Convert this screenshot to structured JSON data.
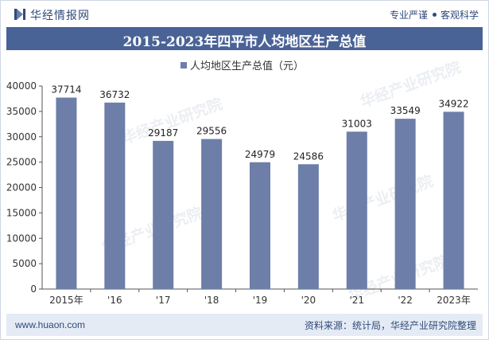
{
  "header": {
    "brand": "华经情报网",
    "slogan_left": "专业严谨",
    "slogan_right": "客观科学"
  },
  "footer": {
    "url": "www.huaon.com",
    "source": "资料来源：统计局，华经产业研究院整理"
  },
  "watermark": "华经产业研究院",
  "colors": {
    "bar": "#6d7ea8",
    "title_bg": "#4a6396",
    "text": "#2f4a7a"
  },
  "chart_data": {
    "type": "bar",
    "title": "2015-2023年四平市人均地区生产总值",
    "legend": "人均地区生产总值（元）",
    "legend_position": "top-center",
    "categories": [
      "2015年",
      "'16",
      "'17",
      "'18",
      "'19",
      "'20",
      "'21",
      "'22",
      "2023年"
    ],
    "series": [
      {
        "name": "人均地区生产总值（元）",
        "values": [
          37714,
          36732,
          29187,
          29556,
          24979,
          24586,
          31003,
          33549,
          34922
        ]
      }
    ],
    "ylim": [
      0,
      40000
    ],
    "yticks": [
      0,
      5000,
      10000,
      15000,
      20000,
      25000,
      30000,
      35000,
      40000
    ],
    "grid": false,
    "xlabel": "",
    "ylabel": ""
  }
}
